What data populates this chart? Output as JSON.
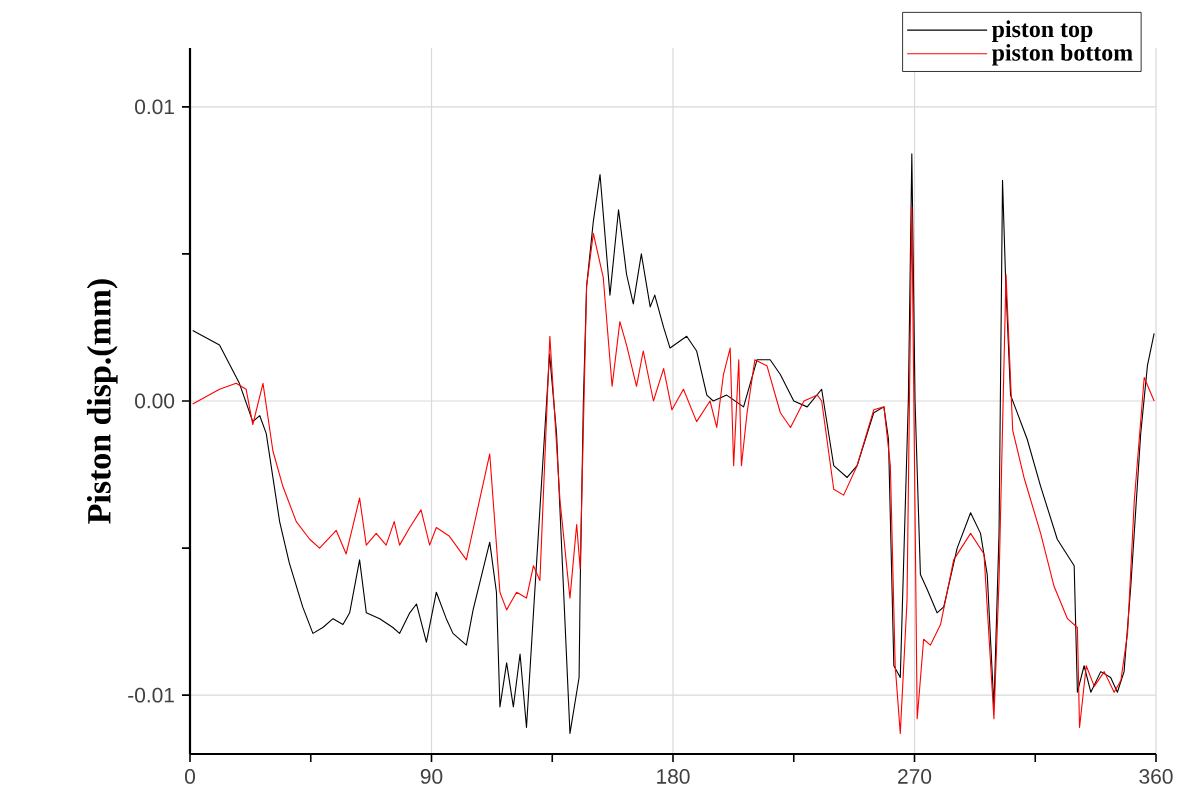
{
  "chart_data": {
    "type": "line",
    "ylabel": "Piston disp.(mm)",
    "xlim": [
      0,
      360
    ],
    "ylim": [
      -0.012,
      0.012
    ],
    "xticks": [
      0,
      {
        "value": 45,
        "label": null
      },
      90,
      {
        "value": 135,
        "label": null
      },
      180,
      {
        "value": 225,
        "label": null
      },
      270,
      {
        "value": 315,
        "label": null
      },
      360
    ],
    "yticks": [
      {
        "value": -0.01,
        "label": "-0.01"
      },
      {
        "value": -0.005,
        "label": null
      },
      {
        "value": 0,
        "label": "0.00"
      },
      {
        "value": 0.005,
        "label": null
      },
      {
        "value": 0.01,
        "label": "0.01"
      }
    ],
    "grid": true,
    "legend": "top right",
    "series": [
      {
        "name": "piston top",
        "color": "#000000",
        "x": [
          1,
          11,
          18.4,
          23.4,
          26,
          28.4,
          33.4,
          37,
          42,
          45.8,
          49.5,
          53.3,
          57,
          59.5,
          63.2,
          65.7,
          70.7,
          75.6,
          78.1,
          81.9,
          84.4,
          88.1,
          91.8,
          95.5,
          98,
          103,
          105.5,
          111.7,
          114.2,
          115.5,
          118,
          120.5,
          123,
          125.4,
          128,
          130.4,
          134,
          136.6,
          141.6,
          145,
          145.4,
          146.6,
          147.8,
          150.3,
          152.8,
          156.5,
          159.7,
          162.7,
          165.2,
          168.2,
          171.5,
          173.2,
          176.5,
          178.9,
          185.1,
          188.8,
          192.6,
          195,
          200,
          206.3,
          211.3,
          216.2,
          220,
          225,
          230,
          235.4,
          239.9,
          244.9,
          248.6,
          254.8,
          258.6,
          260.3,
          262.3,
          263.5,
          264.7,
          266.7,
          267.7,
          269,
          270.2,
          272.2,
          274.7,
          278.4,
          280.9,
          285.9,
          290.9,
          294.6,
          297.1,
          299.6,
          301.5,
          302.8,
          304,
          305.8,
          312,
          317,
          323.2,
          329.5,
          330.7,
          333.2,
          335.7,
          339.4,
          343.1,
          345.6,
          348.1,
          350.6,
          354.3,
          356.8,
          359.3
        ],
        "values": [
          0.0024,
          0.0019,
          0.0006,
          -0.0007,
          -0.0005,
          -0.0011,
          -0.0041,
          -0.0055,
          -0.007,
          -0.0079,
          -0.0077,
          -0.0074,
          -0.0076,
          -0.0072,
          -0.0054,
          -0.0072,
          -0.0074,
          -0.0077,
          -0.0079,
          -0.0072,
          -0.0069,
          -0.0082,
          -0.0065,
          -0.0074,
          -0.0079,
          -0.0083,
          -0.0071,
          -0.0048,
          -0.0065,
          -0.0104,
          -0.0089,
          -0.0104,
          -0.0086,
          -0.0111,
          -0.0072,
          null,
          0.0016,
          -0.0011,
          -0.0113,
          -0.0094,
          -0.0063,
          0,
          0.0039,
          0.0061,
          0.0077,
          0.0036,
          0.0065,
          0.0043,
          0.0033,
          0.005,
          0.0032,
          0.0036,
          0.0025,
          0.0018,
          0.0022,
          0.0017,
          0.0002,
          0,
          0.0002,
          -0.0002,
          0.0014,
          0.0014,
          0.0009,
          0,
          -0.0002,
          0.0004,
          -0.0022,
          -0.0026,
          -0.0022,
          -0.0004,
          -0.0002,
          -0.0013,
          -0.009,
          null,
          -0.0094,
          null,
          0,
          0.0084,
          0,
          -0.0059,
          -0.0064,
          -0.0072,
          -0.007,
          -0.005,
          -0.0038,
          -0.0045,
          -0.0059,
          -0.0104,
          -0.0045,
          0.0075,
          0.004,
          0.0002,
          -0.0013,
          -0.0029,
          -0.0047,
          -0.0056,
          -0.0099,
          -0.009,
          -0.0099,
          -0.0092,
          -0.0094,
          -0.0099,
          -0.0092,
          -0.0063,
          -0.0011,
          0.0012,
          0.0023
        ]
      },
      {
        "name": "piston bottom",
        "color": "#ff0000",
        "x": [
          1,
          11,
          17.2,
          20.9,
          23.4,
          27.2,
          30.9,
          34.6,
          39.6,
          44.6,
          48.3,
          54.5,
          58.2,
          63.2,
          65.7,
          69.4,
          73.1,
          76.1,
          78.1,
          81.9,
          86.1,
          89.3,
          91.8,
          96.7,
          103,
          111.7,
          115.5,
          118,
          121.7,
          125.4,
          128,
          130.4,
          134.1,
          137.9,
          141.6,
          144.1,
          145.4,
          147.8,
          150.3,
          154,
          157.3,
          160.2,
          162.7,
          166.4,
          168.9,
          172.7,
          176.5,
          179.6,
          183.9,
          188.8,
          193.8,
          196.3,
          198.8,
          201.3,
          202.6,
          204.5,
          205.5,
          207.6,
          210.5,
          215,
          220,
          223.8,
          228.8,
          233.8,
          235.4,
          239.9,
          243.6,
          248.6,
          254.8,
          258.6,
          261,
          262.8,
          264.7,
          267.2,
          269,
          271,
          273.4,
          275.9,
          279.7,
          284.6,
          290.9,
          295.9,
          299.6,
          301.5,
          304.1,
          306.6,
          310.8,
          317,
          322,
          327,
          330.7,
          331.5,
          334,
          337,
          340.7,
          344.4,
          346.9,
          349.4,
          351.9,
          355.6,
          359.3
        ],
        "values": [
          -0.0001,
          0.0004,
          0.0006,
          0.0004,
          -0.0008,
          0.0006,
          -0.0017,
          -0.0029,
          -0.0041,
          -0.0047,
          -0.005,
          -0.0044,
          -0.0052,
          -0.0033,
          -0.0049,
          -0.0045,
          -0.0049,
          -0.0041,
          -0.0049,
          -0.0043,
          -0.0037,
          -0.0049,
          -0.0043,
          -0.0046,
          -0.0054,
          -0.0018,
          -0.0065,
          -0.0071,
          -0.0065,
          -0.0067,
          -0.0056,
          -0.0061,
          0.0022,
          -0.0034,
          -0.0067,
          -0.0042,
          -0.0057,
          0.0039,
          0.0057,
          0.0042,
          0.0005,
          0.0027,
          0.0019,
          0.0005,
          0.0017,
          0,
          0.0011,
          -0.0003,
          0.0004,
          -0.0007,
          0,
          -0.0009,
          0.0009,
          0.0018,
          -0.0022,
          0.0014,
          -0.0022,
          -0.0004,
          0.0014,
          0.0012,
          -0.0004,
          -0.0009,
          0,
          0.0002,
          0,
          -0.003,
          -0.0032,
          -0.0022,
          -0.0003,
          -0.0002,
          -0.0022,
          -0.009,
          -0.0113,
          -0.0068,
          0.0066,
          -0.0108,
          -0.0081,
          -0.0083,
          -0.0076,
          -0.0054,
          -0.0045,
          -0.0052,
          -0.0108,
          -0.0061,
          0.0043,
          -0.001,
          -0.0026,
          -0.0045,
          -0.0063,
          -0.0074,
          -0.0077,
          -0.0111,
          -0.009,
          -0.0097,
          -0.0092,
          -0.0099,
          -0.0095,
          -0.0079,
          -0.0034,
          0.0008,
          0
        ]
      }
    ]
  }
}
